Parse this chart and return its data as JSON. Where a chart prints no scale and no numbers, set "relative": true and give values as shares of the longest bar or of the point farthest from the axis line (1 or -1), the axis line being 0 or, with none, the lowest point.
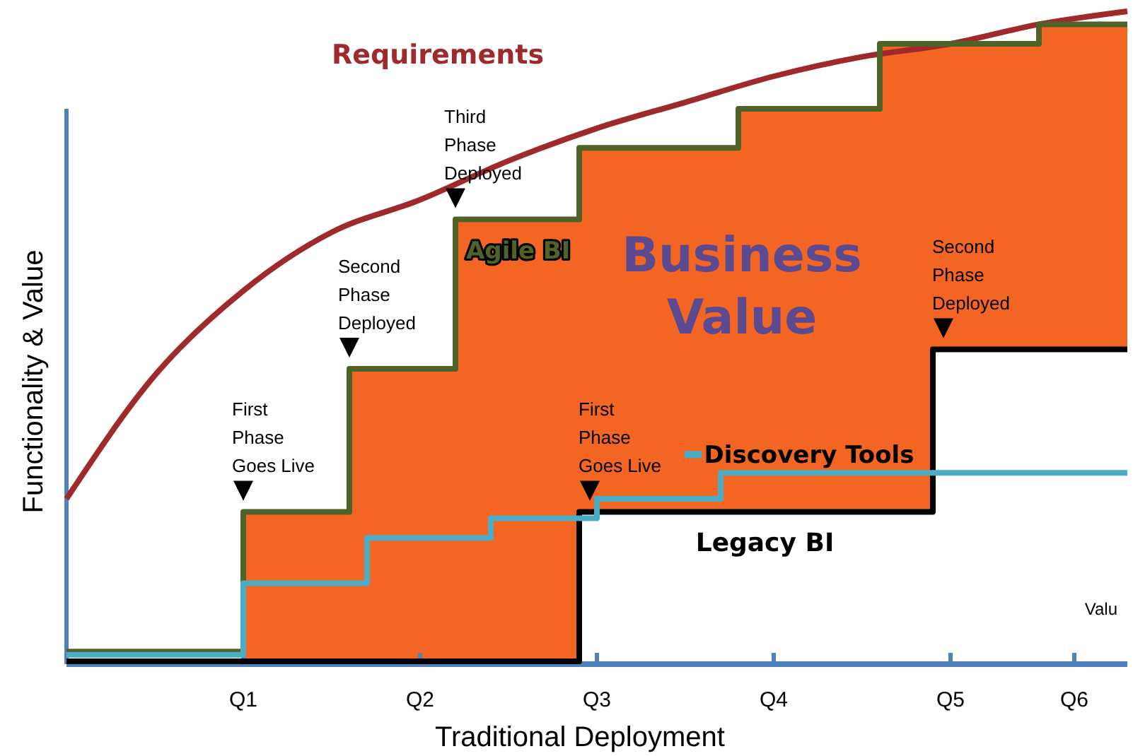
{
  "chart_data": {
    "type": "step",
    "relative": true,
    "xlabel": "Traditional Deployment",
    "ylabel": "Functionality & Value",
    "categories": [
      null,
      null,
      null,
      null,
      null,
      null,
      null,
      null,
      null,
      null,
      "Q1",
      null,
      null,
      null,
      null,
      null,
      null,
      null,
      null,
      null,
      "Q2",
      null,
      null,
      null,
      null,
      null,
      null,
      null,
      null,
      null,
      "Q3",
      null,
      null,
      null,
      null,
      null,
      null,
      null,
      null,
      null,
      "Q4",
      null,
      null,
      null,
      null,
      null,
      null,
      null,
      null,
      null,
      "Q5",
      null,
      null,
      null,
      null,
      null,
      null,
      "Q6",
      null,
      null,
      null
    ],
    "tick_labels": "x",
    "grid": false,
    "marker": "none",
    "line_style": "solid",
    "series": [
      {
        "name": "Business Value",
        "type": "area",
        "color": "#f26522",
        "values": [
          null,
          null,
          null,
          null,
          null,
          null,
          null,
          null,
          null,
          null,
          0.23,
          0.23,
          0.23,
          0.23,
          0.23,
          0.23,
          0.45,
          0.45,
          0.45,
          0.45,
          0.45,
          0.45,
          0.68,
          0.68,
          0.68,
          0.68,
          0.68,
          0.68,
          0.68,
          0.79,
          0.79,
          0.79,
          0.79,
          0.79,
          0.79,
          0.79,
          0.79,
          0.79,
          0.85,
          0.85,
          0.85,
          0.85,
          0.85,
          0.85,
          0.85,
          0.85,
          0.95,
          0.95,
          0.95,
          0.95,
          0.95,
          0.95,
          0.95,
          0.95,
          0.95,
          0.98,
          0.98,
          0.98,
          0.98,
          0.98,
          0.98
        ]
      },
      {
        "name": "Requirements",
        "type": "line",
        "color": "#9e2a2b",
        "values": [
          0.25,
          null,
          null,
          null,
          null,
          0.44,
          null,
          null,
          null,
          null,
          0.57,
          null,
          null,
          null,
          null,
          0.66,
          null,
          null,
          null,
          null,
          0.71,
          null,
          null,
          null,
          null,
          0.77,
          null,
          null,
          null,
          null,
          0.82,
          null,
          null,
          null,
          null,
          0.86,
          null,
          null,
          null,
          null,
          0.9,
          null,
          null,
          null,
          null,
          0.93,
          null,
          null,
          null,
          null,
          0.95,
          null,
          null,
          null,
          null,
          0.98,
          null,
          null,
          null,
          null,
          1
        ]
      },
      {
        "name": "Agile BI",
        "type": "step",
        "color": "#4f6228",
        "values": [
          0.015,
          0.015,
          0.015,
          0.015,
          0.015,
          0.015,
          0.015,
          0.015,
          0.015,
          0.015,
          0.23,
          0.23,
          0.23,
          0.23,
          0.23,
          0.23,
          0.45,
          0.45,
          0.45,
          0.45,
          0.45,
          0.45,
          0.68,
          0.68,
          0.68,
          0.68,
          0.68,
          0.68,
          0.68,
          0.79,
          0.79,
          0.79,
          0.79,
          0.79,
          0.79,
          0.79,
          0.79,
          0.79,
          0.85,
          0.85,
          0.85,
          0.85,
          0.85,
          0.85,
          0.85,
          0.85,
          0.95,
          0.95,
          0.95,
          0.95,
          0.95,
          0.95,
          0.95,
          0.95,
          0.95,
          0.98,
          0.98,
          0.98,
          0.98,
          0.98,
          0.98
        ]
      },
      {
        "name": "Legacy BI",
        "type": "step",
        "color": "#000000",
        "values": [
          0,
          0,
          0,
          0,
          0,
          0,
          0,
          0,
          0,
          0,
          0,
          0,
          0,
          0,
          0,
          0,
          0,
          0,
          0,
          0,
          0,
          0,
          0,
          0,
          0,
          0,
          0,
          0,
          0,
          0.23,
          0.23,
          0.23,
          0.23,
          0.23,
          0.23,
          0.23,
          0.23,
          0.23,
          0.23,
          0.23,
          0.23,
          0.23,
          0.23,
          0.23,
          0.23,
          0.23,
          0.23,
          0.23,
          0.23,
          0.48,
          0.48,
          0.48,
          0.48,
          0.48,
          0.48,
          0.48,
          0.48,
          0.48,
          0.48,
          0.48,
          0.48
        ]
      },
      {
        "name": "Discovery Tools",
        "color": "#4bacc6",
        "values": [
          0.01,
          0.01,
          0.01,
          0.01,
          0.01,
          0.01,
          0.01,
          0.01,
          0.01,
          0.01,
          0.12,
          0.12,
          0.12,
          0.12,
          0.12,
          0.12,
          0.12,
          0.19,
          0.19,
          0.19,
          0.19,
          0.19,
          0.19,
          0.19,
          0.22,
          0.22,
          0.22,
          0.22,
          0.22,
          0.22,
          0.25,
          0.25,
          0.25,
          0.25,
          0.25,
          0.25,
          0.25,
          0.29,
          0.29,
          0.29,
          0.29,
          0.29,
          0.29,
          0.29,
          0.29,
          0.29,
          0.29,
          0.29,
          0.29,
          0.29,
          0.29,
          0.29,
          0.29,
          0.29,
          0.29,
          0.29,
          0.29,
          0.29,
          0.29,
          0.29,
          0.29
        ]
      }
    ],
    "annotations": [
      {
        "text": "First\nPhase\nGoes Live",
        "y": 0.23
      },
      {
        "text": "Second\nPhase\nDeployed",
        "y": 0.45
      },
      {
        "text": "Third\nPhase\nDeployed",
        "y": 0.68
      },
      {
        "text": "First\nPhase\nGoes Live",
        "y": 0.23
      },
      {
        "text": "Second\nPhase\nDeployed",
        "y": 0.48
      },
      "Valu"
    ]
  }
}
